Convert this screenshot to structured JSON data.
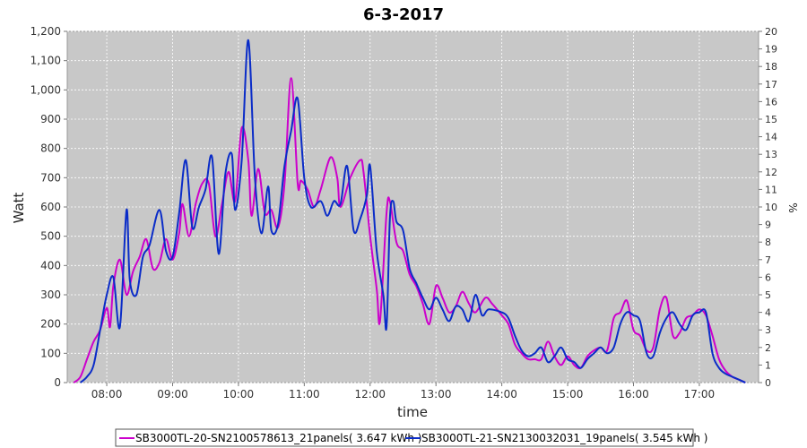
{
  "chart_data": {
    "type": "line",
    "title": "6-3-2017",
    "xlabel": "time",
    "ylabel": "Watt",
    "y2label": "%",
    "xlim": [
      7.4,
      17.9
    ],
    "ylim": [
      0,
      1200
    ],
    "y2lim": [
      0,
      20
    ],
    "x_ticks": [
      {
        "value": 8,
        "label": "08:00"
      },
      {
        "value": 9,
        "label": "09:00"
      },
      {
        "value": 10,
        "label": "10:00"
      },
      {
        "value": 11,
        "label": "11:00"
      },
      {
        "value": 12,
        "label": "12:00"
      },
      {
        "value": 13,
        "label": "13:00"
      },
      {
        "value": 14,
        "label": "14:00"
      },
      {
        "value": 15,
        "label": "15:00"
      },
      {
        "value": 16,
        "label": "16:00"
      },
      {
        "value": 17,
        "label": "17:00"
      }
    ],
    "y_ticks": [
      {
        "value": 0,
        "label": "0"
      },
      {
        "value": 100,
        "label": "100"
      },
      {
        "value": 200,
        "label": "200"
      },
      {
        "value": 300,
        "label": "300"
      },
      {
        "value": 400,
        "label": "400"
      },
      {
        "value": 500,
        "label": "500"
      },
      {
        "value": 600,
        "label": "600"
      },
      {
        "value": 700,
        "label": "700"
      },
      {
        "value": 800,
        "label": "800"
      },
      {
        "value": 900,
        "label": "900"
      },
      {
        "value": 1000,
        "label": "1,000"
      },
      {
        "value": 1100,
        "label": "1,100"
      },
      {
        "value": 1200,
        "label": "1,200"
      }
    ],
    "y2_ticks": [
      0,
      1,
      2,
      3,
      4,
      5,
      6,
      7,
      8,
      9,
      10,
      11,
      12,
      13,
      14,
      15,
      16,
      17,
      18,
      19,
      20
    ],
    "grid": true,
    "legend_position": "bottom",
    "series": [
      {
        "name": "SB3000TL-20-SN2100578613_21panels( 3.647 kWh )",
        "color": "#cc00cc",
        "points": [
          [
            7.5,
            0
          ],
          [
            7.6,
            20
          ],
          [
            7.7,
            80
          ],
          [
            7.8,
            140
          ],
          [
            7.9,
            180
          ],
          [
            8.0,
            255
          ],
          [
            8.05,
            190
          ],
          [
            8.1,
            330
          ],
          [
            8.2,
            420
          ],
          [
            8.3,
            300
          ],
          [
            8.4,
            380
          ],
          [
            8.5,
            430
          ],
          [
            8.6,
            490
          ],
          [
            8.7,
            390
          ],
          [
            8.8,
            410
          ],
          [
            8.9,
            490
          ],
          [
            9.0,
            420
          ],
          [
            9.1,
            510
          ],
          [
            9.15,
            610
          ],
          [
            9.25,
            500
          ],
          [
            9.35,
            610
          ],
          [
            9.45,
            680
          ],
          [
            9.55,
            680
          ],
          [
            9.65,
            500
          ],
          [
            9.75,
            610
          ],
          [
            9.85,
            720
          ],
          [
            9.95,
            620
          ],
          [
            10.05,
            870
          ],
          [
            10.15,
            760
          ],
          [
            10.2,
            570
          ],
          [
            10.3,
            730
          ],
          [
            10.4,
            580
          ],
          [
            10.5,
            590
          ],
          [
            10.6,
            530
          ],
          [
            10.7,
            680
          ],
          [
            10.8,
            1040
          ],
          [
            10.9,
            680
          ],
          [
            10.95,
            690
          ],
          [
            11.05,
            660
          ],
          [
            11.15,
            600
          ],
          [
            11.25,
            660
          ],
          [
            11.4,
            770
          ],
          [
            11.5,
            700
          ],
          [
            11.55,
            600
          ],
          [
            11.7,
            700
          ],
          [
            11.85,
            760
          ],
          [
            11.9,
            720
          ],
          [
            12.0,
            500
          ],
          [
            12.1,
            320
          ],
          [
            12.15,
            210
          ],
          [
            12.25,
            580
          ],
          [
            12.3,
            620
          ],
          [
            12.4,
            480
          ],
          [
            12.5,
            450
          ],
          [
            12.6,
            370
          ],
          [
            12.7,
            330
          ],
          [
            12.8,
            270
          ],
          [
            12.9,
            200
          ],
          [
            13.0,
            330
          ],
          [
            13.1,
            290
          ],
          [
            13.2,
            240
          ],
          [
            13.3,
            260
          ],
          [
            13.4,
            310
          ],
          [
            13.5,
            270
          ],
          [
            13.6,
            240
          ],
          [
            13.75,
            290
          ],
          [
            13.85,
            270
          ],
          [
            14.0,
            230
          ],
          [
            14.1,
            200
          ],
          [
            14.2,
            130
          ],
          [
            14.3,
            100
          ],
          [
            14.4,
            80
          ],
          [
            14.5,
            80
          ],
          [
            14.6,
            80
          ],
          [
            14.7,
            140
          ],
          [
            14.8,
            90
          ],
          [
            14.9,
            60
          ],
          [
            15.0,
            90
          ],
          [
            15.1,
            60
          ],
          [
            15.2,
            50
          ],
          [
            15.3,
            90
          ],
          [
            15.4,
            110
          ],
          [
            15.5,
            120
          ],
          [
            15.6,
            110
          ],
          [
            15.7,
            220
          ],
          [
            15.8,
            240
          ],
          [
            15.9,
            280
          ],
          [
            16.0,
            180
          ],
          [
            16.1,
            160
          ],
          [
            16.2,
            110
          ],
          [
            16.3,
            120
          ],
          [
            16.4,
            250
          ],
          [
            16.5,
            290
          ],
          [
            16.6,
            160
          ],
          [
            16.7,
            170
          ],
          [
            16.8,
            220
          ],
          [
            16.9,
            230
          ],
          [
            17.0,
            250
          ],
          [
            17.1,
            230
          ],
          [
            17.2,
            160
          ],
          [
            17.3,
            80
          ],
          [
            17.4,
            40
          ],
          [
            17.5,
            20
          ],
          [
            17.6,
            10
          ],
          [
            17.7,
            0
          ]
        ]
      },
      {
        "name": "SB3000TL-21-SN2130032031_19panels( 3.545 kWh )",
        "color": "#0a2cc8",
        "points": [
          [
            7.6,
            0
          ],
          [
            7.7,
            20
          ],
          [
            7.8,
            60
          ],
          [
            7.9,
            180
          ],
          [
            8.0,
            300
          ],
          [
            8.1,
            360
          ],
          [
            8.2,
            190
          ],
          [
            8.3,
            590
          ],
          [
            8.35,
            350
          ],
          [
            8.45,
            300
          ],
          [
            8.55,
            430
          ],
          [
            8.65,
            470
          ],
          [
            8.8,
            590
          ],
          [
            8.9,
            450
          ],
          [
            9.0,
            430
          ],
          [
            9.1,
            580
          ],
          [
            9.2,
            760
          ],
          [
            9.3,
            530
          ],
          [
            9.4,
            600
          ],
          [
            9.5,
            660
          ],
          [
            9.6,
            770
          ],
          [
            9.7,
            440
          ],
          [
            9.8,
            710
          ],
          [
            9.9,
            780
          ],
          [
            9.95,
            590
          ],
          [
            10.05,
            760
          ],
          [
            10.15,
            1170
          ],
          [
            10.25,
            700
          ],
          [
            10.35,
            510
          ],
          [
            10.45,
            670
          ],
          [
            10.5,
            520
          ],
          [
            10.6,
            540
          ],
          [
            10.7,
            740
          ],
          [
            10.8,
            860
          ],
          [
            10.9,
            970
          ],
          [
            11.0,
            700
          ],
          [
            11.1,
            600
          ],
          [
            11.25,
            620
          ],
          [
            11.35,
            570
          ],
          [
            11.45,
            620
          ],
          [
            11.55,
            610
          ],
          [
            11.65,
            740
          ],
          [
            11.75,
            520
          ],
          [
            11.85,
            560
          ],
          [
            11.95,
            640
          ],
          [
            12.0,
            740
          ],
          [
            12.1,
            450
          ],
          [
            12.2,
            300
          ],
          [
            12.25,
            190
          ],
          [
            12.3,
            560
          ],
          [
            12.35,
            620
          ],
          [
            12.4,
            550
          ],
          [
            12.5,
            520
          ],
          [
            12.6,
            390
          ],
          [
            12.7,
            340
          ],
          [
            12.8,
            290
          ],
          [
            12.9,
            250
          ],
          [
            13.0,
            290
          ],
          [
            13.1,
            250
          ],
          [
            13.2,
            210
          ],
          [
            13.3,
            260
          ],
          [
            13.4,
            250
          ],
          [
            13.5,
            210
          ],
          [
            13.6,
            300
          ],
          [
            13.7,
            230
          ],
          [
            13.8,
            250
          ],
          [
            14.0,
            240
          ],
          [
            14.1,
            220
          ],
          [
            14.2,
            160
          ],
          [
            14.3,
            110
          ],
          [
            14.4,
            90
          ],
          [
            14.5,
            100
          ],
          [
            14.6,
            120
          ],
          [
            14.7,
            70
          ],
          [
            14.8,
            90
          ],
          [
            14.9,
            120
          ],
          [
            15.0,
            80
          ],
          [
            15.1,
            70
          ],
          [
            15.2,
            50
          ],
          [
            15.3,
            80
          ],
          [
            15.4,
            100
          ],
          [
            15.5,
            120
          ],
          [
            15.6,
            100
          ],
          [
            15.7,
            120
          ],
          [
            15.8,
            200
          ],
          [
            15.9,
            240
          ],
          [
            16.0,
            230
          ],
          [
            16.1,
            210
          ],
          [
            16.2,
            100
          ],
          [
            16.3,
            90
          ],
          [
            16.4,
            170
          ],
          [
            16.5,
            220
          ],
          [
            16.6,
            240
          ],
          [
            16.7,
            200
          ],
          [
            16.8,
            180
          ],
          [
            16.9,
            230
          ],
          [
            17.0,
            240
          ],
          [
            17.1,
            240
          ],
          [
            17.2,
            100
          ],
          [
            17.3,
            50
          ],
          [
            17.4,
            30
          ],
          [
            17.5,
            20
          ],
          [
            17.6,
            10
          ],
          [
            17.7,
            0
          ]
        ]
      }
    ]
  }
}
